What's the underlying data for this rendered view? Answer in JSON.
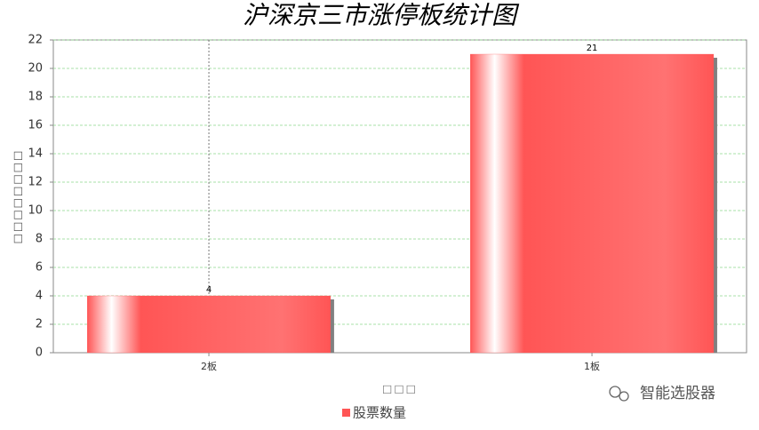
{
  "chart_data": {
    "type": "bar",
    "title": "沪深京三市涨停板统计图",
    "x_label": "□□□",
    "y_label": "□□□□□□□□",
    "categories": [
      "2板",
      "1板"
    ],
    "series": [
      {
        "name": "股票数量",
        "color": "#ff5555",
        "values": [
          4,
          21
        ]
      }
    ],
    "ylim": [
      0,
      22
    ],
    "yticks": [
      0,
      2,
      4,
      6,
      8,
      10,
      12,
      14,
      16,
      18,
      20,
      22
    ],
    "grid": true
  },
  "watermark": "智能选股器"
}
